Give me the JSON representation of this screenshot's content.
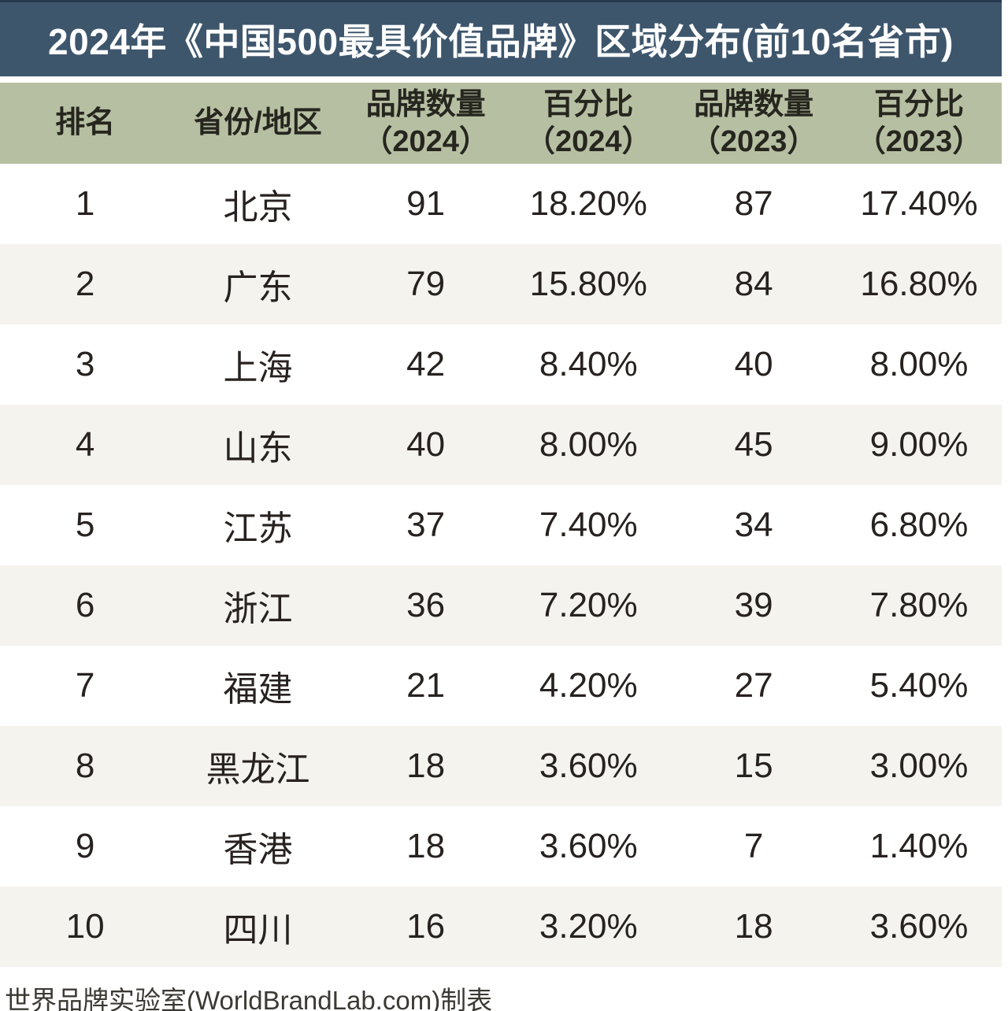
{
  "title": "2024年《中国500最具价值品牌》区域分布(前10名省市)",
  "footer": {
    "credit": "世界品牌实验室(WorldBrandLab.com)制表"
  },
  "colors": {
    "title_bar_bg": "#3e566c",
    "title_bar_top_border": "#24394e",
    "title_text": "#ffffff",
    "header_row_bg": "#b6bfa2",
    "zebra_row_bg": "#f4f3ee",
    "row_bg": "#ffffff",
    "body_text": "#272220",
    "footer_text": "#3b3933"
  },
  "chart_data": {
    "type": "table",
    "title": "2024年《中国500最具价值品牌》区域分布(前10名省市)",
    "columns": [
      "排名",
      "省份/地区",
      "品牌数量（2024）",
      "百分比（2024）",
      "品牌数量（2023）",
      "百分比（2023）"
    ],
    "rows": [
      [
        1,
        "北京",
        91,
        "18.20%",
        87,
        "17.40%"
      ],
      [
        2,
        "广东",
        79,
        "15.80%",
        84,
        "16.80%"
      ],
      [
        3,
        "上海",
        42,
        "8.40%",
        40,
        "8.00%"
      ],
      [
        4,
        "山东",
        40,
        "8.00%",
        45,
        "9.00%"
      ],
      [
        5,
        "江苏",
        37,
        "7.40%",
        34,
        "6.80%"
      ],
      [
        6,
        "浙江",
        36,
        "7.20%",
        39,
        "7.80%"
      ],
      [
        7,
        "福建",
        21,
        "4.20%",
        27,
        "5.40%"
      ],
      [
        8,
        "黑龙江",
        18,
        "3.60%",
        15,
        "3.00%"
      ],
      [
        9,
        "香港",
        18,
        "3.60%",
        7,
        "1.40%"
      ],
      [
        10,
        "四川",
        16,
        "3.20%",
        18,
        "3.60%"
      ]
    ],
    "layout": {
      "zebra_striping": true,
      "header_background": "#b6bfa2",
      "source_credit": "世界品牌实验室(WorldBrandLab.com)制表"
    }
  }
}
